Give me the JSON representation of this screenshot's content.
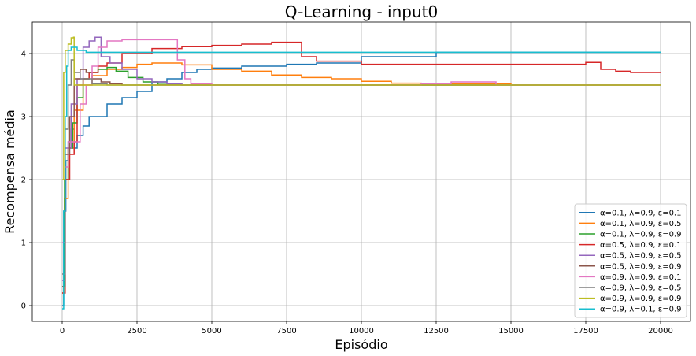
{
  "chart_data": {
    "type": "line",
    "title": "Q-Learning - input0",
    "xlabel": "Episódio",
    "ylabel": "Recompensa média",
    "xlim": [
      -1000,
      21000
    ],
    "ylim": [
      -0.25,
      4.5
    ],
    "xticks": [
      0,
      2500,
      5000,
      7500,
      10000,
      12500,
      15000,
      17500,
      20000
    ],
    "yticks": [
      0,
      1,
      2,
      3,
      4
    ],
    "grid": true,
    "legend_position": "lower right",
    "series": [
      {
        "name": "α=0.1, λ=0.9, ε=0.1",
        "color": "#1f77b4",
        "points": [
          [
            0,
            0.0
          ],
          [
            50,
            1.5
          ],
          [
            120,
            2.3
          ],
          [
            200,
            2.6
          ],
          [
            300,
            2.8
          ],
          [
            400,
            2.5
          ],
          [
            500,
            2.7
          ],
          [
            700,
            2.85
          ],
          [
            900,
            3.0
          ],
          [
            1200,
            3.0
          ],
          [
            1500,
            3.2
          ],
          [
            2000,
            3.3
          ],
          [
            2500,
            3.4
          ],
          [
            3000,
            3.55
          ],
          [
            3500,
            3.6
          ],
          [
            4000,
            3.7
          ],
          [
            4500,
            3.75
          ],
          [
            5000,
            3.77
          ],
          [
            6000,
            3.8
          ],
          [
            7500,
            3.83
          ],
          [
            8500,
            3.85
          ],
          [
            10000,
            3.95
          ],
          [
            12500,
            4.02
          ],
          [
            15000,
            4.02
          ],
          [
            17500,
            4.02
          ],
          [
            20000,
            4.02
          ]
        ]
      },
      {
        "name": "α=0.1, λ=0.9, ε=0.5",
        "color": "#ff7f0e",
        "points": [
          [
            0,
            0.2
          ],
          [
            80,
            1.7
          ],
          [
            200,
            2.5
          ],
          [
            400,
            3.1
          ],
          [
            700,
            3.5
          ],
          [
            1000,
            3.65
          ],
          [
            1500,
            3.75
          ],
          [
            2000,
            3.78
          ],
          [
            2500,
            3.83
          ],
          [
            3000,
            3.85
          ],
          [
            4000,
            3.82
          ],
          [
            5000,
            3.75
          ],
          [
            6000,
            3.72
          ],
          [
            7000,
            3.66
          ],
          [
            8000,
            3.62
          ],
          [
            9000,
            3.6
          ],
          [
            10000,
            3.56
          ],
          [
            11000,
            3.53
          ],
          [
            12000,
            3.52
          ],
          [
            15000,
            3.5
          ],
          [
            20000,
            3.5
          ]
        ]
      },
      {
        "name": "α=0.1, λ=0.9, ε=0.9",
        "color": "#2ca02c",
        "points": [
          [
            0,
            0.3
          ],
          [
            80,
            2.0
          ],
          [
            200,
            2.5
          ],
          [
            350,
            2.9
          ],
          [
            500,
            3.3
          ],
          [
            700,
            3.6
          ],
          [
            900,
            3.7
          ],
          [
            1200,
            3.75
          ],
          [
            1500,
            3.78
          ],
          [
            1800,
            3.72
          ],
          [
            2200,
            3.62
          ],
          [
            2700,
            3.55
          ],
          [
            3200,
            3.51
          ],
          [
            4000,
            3.5
          ],
          [
            20000,
            3.5
          ]
        ]
      },
      {
        "name": "α=0.5, λ=0.9, ε=0.1",
        "color": "#d62728",
        "points": [
          [
            0,
            0.2
          ],
          [
            100,
            2.0
          ],
          [
            250,
            2.4
          ],
          [
            400,
            2.6
          ],
          [
            500,
            3.5
          ],
          [
            700,
            3.6
          ],
          [
            900,
            3.7
          ],
          [
            1200,
            3.8
          ],
          [
            1500,
            3.85
          ],
          [
            2000,
            4.0
          ],
          [
            3000,
            4.08
          ],
          [
            4000,
            4.11
          ],
          [
            5000,
            4.13
          ],
          [
            6000,
            4.15
          ],
          [
            7000,
            4.18
          ],
          [
            7700,
            4.18
          ],
          [
            8000,
            3.95
          ],
          [
            8500,
            3.88
          ],
          [
            10000,
            3.83
          ],
          [
            12000,
            3.83
          ],
          [
            15000,
            3.83
          ],
          [
            17500,
            3.86
          ],
          [
            18000,
            3.75
          ],
          [
            18500,
            3.72
          ],
          [
            19000,
            3.7
          ],
          [
            20000,
            3.7
          ]
        ]
      },
      {
        "name": "α=0.5, λ=0.9, ε=0.5",
        "color": "#9467bd",
        "points": [
          [
            0,
            0.4
          ],
          [
            100,
            2.5
          ],
          [
            300,
            3.2
          ],
          [
            500,
            3.6
          ],
          [
            700,
            4.1
          ],
          [
            900,
            4.2
          ],
          [
            1100,
            4.26
          ],
          [
            1300,
            3.95
          ],
          [
            1600,
            3.85
          ],
          [
            2000,
            3.75
          ],
          [
            2500,
            3.6
          ],
          [
            3000,
            3.55
          ],
          [
            3500,
            3.52
          ],
          [
            4000,
            3.5
          ],
          [
            20000,
            3.5
          ]
        ]
      },
      {
        "name": "α=0.5, λ=0.9, ε=0.9",
        "color": "#8c564b",
        "points": [
          [
            0,
            0.3
          ],
          [
            100,
            2.4
          ],
          [
            250,
            3.0
          ],
          [
            400,
            3.6
          ],
          [
            600,
            3.75
          ],
          [
            800,
            3.7
          ],
          [
            1000,
            3.6
          ],
          [
            1300,
            3.55
          ],
          [
            1600,
            3.52
          ],
          [
            2000,
            3.5
          ],
          [
            20000,
            3.5
          ]
        ]
      },
      {
        "name": "α=0.9, λ=0.9, ε=0.1",
        "color": "#e377c2",
        "points": [
          [
            0,
            1.0
          ],
          [
            100,
            2.2
          ],
          [
            200,
            2.6
          ],
          [
            400,
            2.6
          ],
          [
            600,
            3.2
          ],
          [
            800,
            3.5
          ],
          [
            1000,
            3.8
          ],
          [
            1200,
            4.1
          ],
          [
            1500,
            4.2
          ],
          [
            2000,
            4.22
          ],
          [
            3000,
            4.22
          ],
          [
            3800,
            4.22
          ],
          [
            3850,
            3.9
          ],
          [
            4100,
            3.6
          ],
          [
            4300,
            3.52
          ],
          [
            5000,
            3.5
          ],
          [
            11000,
            3.5
          ],
          [
            12000,
            3.52
          ],
          [
            13000,
            3.55
          ],
          [
            14400,
            3.55
          ],
          [
            14500,
            3.5
          ],
          [
            20000,
            3.5
          ]
        ]
      },
      {
        "name": "α=0.9, λ=0.9, ε=0.5",
        "color": "#7f7f7f",
        "points": [
          [
            0,
            0.5
          ],
          [
            100,
            2.8
          ],
          [
            200,
            3.5
          ],
          [
            300,
            3.9
          ],
          [
            400,
            3.7
          ],
          [
            600,
            3.6
          ],
          [
            1000,
            3.52
          ],
          [
            1500,
            3.5
          ],
          [
            20000,
            3.5
          ]
        ]
      },
      {
        "name": "α=0.9, λ=0.9, ε=0.9",
        "color": "#bcbd22",
        "points": [
          [
            0,
            2.0
          ],
          [
            50,
            3.7
          ],
          [
            100,
            4.05
          ],
          [
            200,
            4.15
          ],
          [
            300,
            4.25
          ],
          [
            380,
            4.26
          ],
          [
            400,
            3.5
          ],
          [
            500,
            3.5
          ],
          [
            20000,
            3.5
          ]
        ]
      },
      {
        "name": "α=0.9, λ=0.1, ε=0.9",
        "color": "#17becf",
        "points": [
          [
            0,
            -0.05
          ],
          [
            50,
            1.5
          ],
          [
            100,
            3.0
          ],
          [
            150,
            3.8
          ],
          [
            200,
            4.05
          ],
          [
            300,
            4.1
          ],
          [
            500,
            4.05
          ],
          [
            800,
            4.02
          ],
          [
            20000,
            4.02
          ]
        ]
      }
    ]
  }
}
